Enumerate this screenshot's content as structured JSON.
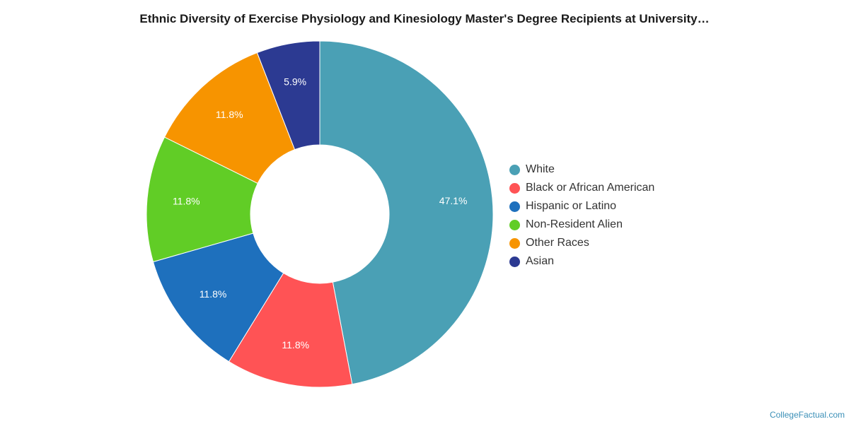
{
  "chart_data": {
    "type": "pie",
    "variant": "donut",
    "title": "Ethnic Diversity of Exercise Physiology and Kinesiology Master's Degree Recipients at University…",
    "categories": [
      "White",
      "Black or African American",
      "Hispanic or Latino",
      "Non-Resident Alien",
      "Other Races",
      "Asian"
    ],
    "values": [
      47.1,
      11.8,
      11.8,
      11.8,
      11.8,
      5.9
    ],
    "value_labels": [
      "47.1%",
      "11.8%",
      "11.8%",
      "11.8%",
      "11.8%",
      "5.9%"
    ],
    "colors": [
      "#4aa0b5",
      "#ff5355",
      "#1e70bd",
      "#61cd26",
      "#f79400",
      "#2c3a92"
    ],
    "legend_position": "right"
  },
  "credit": "CollegeFactual.com"
}
